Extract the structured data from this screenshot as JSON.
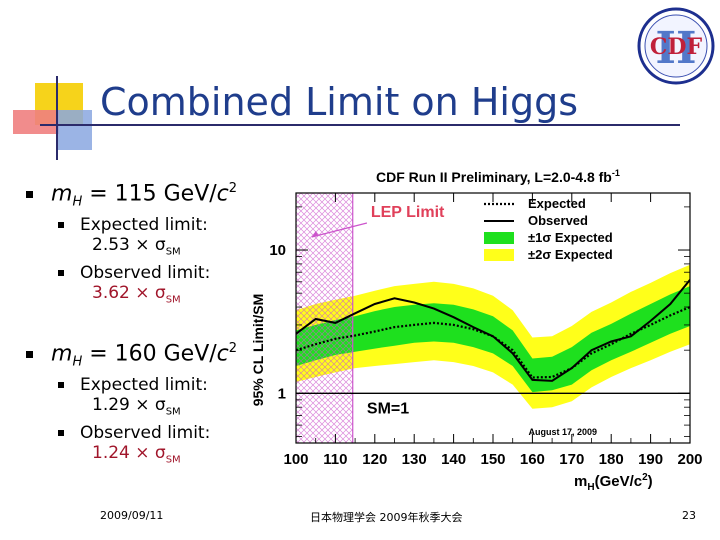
{
  "slide": {
    "title": "Combined Limit on Higgs",
    "bullets": [
      {
        "label": "m",
        "label_sub": "H",
        "label_rest": " = 115 GeV/",
        "label_c": "c",
        "label_sup": "2",
        "items": [
          {
            "head": "Expected limit:",
            "value": "2.53 × σ",
            "value_sub": "SM"
          },
          {
            "head": "Observed limit:",
            "value": "3.62 × σ",
            "value_sub": "SM"
          }
        ]
      },
      {
        "label": "m",
        "label_sub": "H",
        "label_rest": " = 160 GeV/",
        "label_c": "c",
        "label_sup": "2",
        "items": [
          {
            "head": "Expected limit:",
            "value": "1.29 × σ",
            "value_sub": "SM"
          },
          {
            "head": "Observed limit:",
            "value": "1.24 × σ",
            "value_sub": "SM"
          }
        ]
      }
    ],
    "footer": {
      "date": "2009/09/11",
      "event": "日本物理学会 2009年秋季大会",
      "page": "23"
    },
    "logo_text": "CDF",
    "logo_letter": "II"
  },
  "chart_data": {
    "type": "line",
    "title": "CDF Run II Preliminary, L=2.0-4.8 fb",
    "title_sup": "-1",
    "xlabel": "m",
    "xlabel_sub": "H",
    "xlabel_rest": "(GeV/c",
    "xlabel_sup": "2",
    "xlabel_end": ")",
    "ylabel": "95% CL Limit/SM",
    "x_ticks": [
      "100",
      "110",
      "120",
      "130",
      "140",
      "150",
      "160",
      "170",
      "180",
      "190",
      "200"
    ],
    "y_ticks": [
      "10",
      "1"
    ],
    "xlim": [
      100,
      200
    ],
    "ylim": [
      0.45,
      25
    ],
    "yscale": "log",
    "lep_limit_label": "LEP Limit",
    "lep_region": [
      100,
      114.4
    ],
    "sm_label": "SM=1",
    "date_label": "August 17, 2009",
    "legend": [
      {
        "label": "Expected",
        "style": "dotted"
      },
      {
        "label": "Observed",
        "style": "solid"
      },
      {
        "label": "±1σ Expected",
        "style": "green"
      },
      {
        "label": "±2σ Expected",
        "style": "yellow"
      }
    ],
    "x": [
      100,
      105,
      110,
      115,
      120,
      125,
      130,
      135,
      140,
      145,
      150,
      155,
      160,
      165,
      170,
      175,
      180,
      185,
      190,
      195,
      200
    ],
    "expected": [
      2.0,
      2.2,
      2.4,
      2.53,
      2.7,
      2.9,
      3.0,
      3.1,
      3.0,
      2.8,
      2.5,
      2.0,
      1.29,
      1.3,
      1.5,
      1.9,
      2.2,
      2.6,
      3.0,
      3.5,
      4.0
    ],
    "observed": [
      2.6,
      3.3,
      3.1,
      3.62,
      4.2,
      4.6,
      4.3,
      3.9,
      3.4,
      2.9,
      2.5,
      1.9,
      1.24,
      1.22,
      1.5,
      2.0,
      2.3,
      2.5,
      3.2,
      4.2,
      6.2
    ],
    "one_sigma_low": [
      1.55,
      1.7,
      1.85,
      1.95,
      2.05,
      2.15,
      2.25,
      2.3,
      2.25,
      2.1,
      1.9,
      1.55,
      1.02,
      1.05,
      1.15,
      1.45,
      1.7,
      1.95,
      2.25,
      2.6,
      2.95
    ],
    "one_sigma_high": [
      2.75,
      3.0,
      3.25,
      3.45,
      3.75,
      4.0,
      4.15,
      4.25,
      4.15,
      3.85,
      3.45,
      2.75,
      1.75,
      1.8,
      2.1,
      2.65,
      3.05,
      3.6,
      4.2,
      4.9,
      5.6
    ],
    "two_sigma_low": [
      1.2,
      1.3,
      1.4,
      1.5,
      1.55,
      1.6,
      1.65,
      1.7,
      1.65,
      1.55,
      1.4,
      1.15,
      0.78,
      0.8,
      0.88,
      1.1,
      1.3,
      1.5,
      1.7,
      1.95,
      2.2
    ],
    "two_sigma_high": [
      3.8,
      4.2,
      4.5,
      4.8,
      5.2,
      5.6,
      5.8,
      6.0,
      5.8,
      5.4,
      4.8,
      3.8,
      2.45,
      2.5,
      2.95,
      3.7,
      4.3,
      5.1,
      5.9,
      6.9,
      7.9
    ],
    "colors": {
      "one_sigma": "#1ee01e",
      "two_sigma": "#ffff1a",
      "expected": "#000000",
      "observed": "#000000",
      "lep": "#cc55cc",
      "lep_label": "#e0405a"
    }
  }
}
